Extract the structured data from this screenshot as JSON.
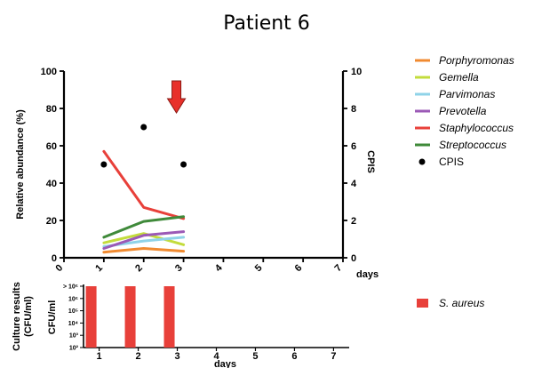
{
  "title": "Patient 6",
  "chart_data": [
    {
      "type": "line",
      "x": [
        1,
        2,
        3
      ],
      "xlabel": "days",
      "xlim": [
        0,
        7
      ],
      "x_ticks": [
        "0",
        "1",
        "2",
        "3",
        "4",
        "5",
        "6",
        "7"
      ],
      "ylabel": "Relative abundance (%)",
      "ylim": [
        0,
        100
      ],
      "y_ticks": [
        "0",
        "20",
        "40",
        "60",
        "80",
        "100"
      ],
      "y2label": "CPIS",
      "y2lim": [
        0,
        10
      ],
      "y2_ticks": [
        "0",
        "2",
        "4",
        "6",
        "8",
        "10"
      ],
      "series": [
        {
          "name": "Porphyromonas",
          "color": "#f08a30",
          "values": [
            3,
            5,
            3.5
          ]
        },
        {
          "name": "Gemella",
          "color": "#c3dc3c",
          "values": [
            8,
            13,
            7
          ]
        },
        {
          "name": "Parvimonas",
          "color": "#8fd3e8",
          "values": [
            6,
            9,
            11
          ]
        },
        {
          "name": "Prevotella",
          "color": "#9b59b6",
          "values": [
            5,
            12,
            14
          ]
        },
        {
          "name": "Staphylococcus",
          "color": "#e8403a",
          "values": [
            57,
            27,
            21
          ]
        },
        {
          "name": "Streptococcus",
          "color": "#3f8a3a",
          "values": [
            11,
            19.5,
            22
          ]
        }
      ],
      "cpis": {
        "name": "CPIS",
        "color": "#000000",
        "x": [
          1,
          2,
          3
        ],
        "values": [
          5,
          7,
          5
        ]
      },
      "arrow": {
        "x": 3,
        "color": "#e8302a"
      },
      "legend_position": "right"
    },
    {
      "type": "bar",
      "ylabel_lines": [
        "Culture results",
        "(CFU/ml)"
      ],
      "yunit": "CFU/ml",
      "xlabel": "days",
      "xlim": [
        0.6,
        7.4
      ],
      "x_ticks": [
        "1",
        "2",
        "3",
        "4",
        "5",
        "6",
        "7"
      ],
      "y_ticks": [
        "10²",
        "10³",
        "10⁴",
        "10⁵",
        "10⁶",
        "> 10⁶"
      ],
      "series": [
        {
          "name": "S. aureus",
          "color": "#e8403a",
          "x": [
            1,
            2,
            3
          ],
          "values_log10": [
            6,
            6,
            6
          ]
        }
      ],
      "legend_position": "right"
    }
  ]
}
